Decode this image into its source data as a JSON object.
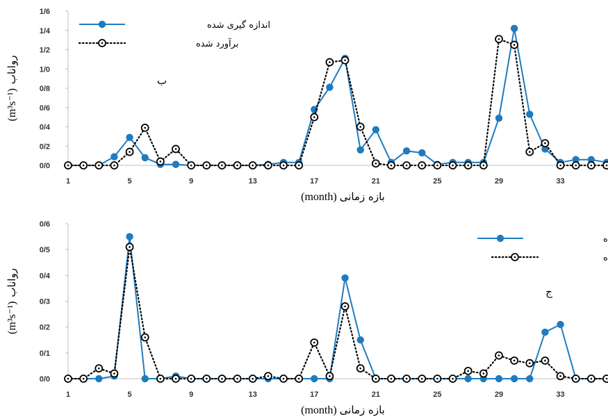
{
  "colors": {
    "measured": "#1f7bbf",
    "estimated": "#000000",
    "axis": "#bfbfbf"
  },
  "chart_data": [
    {
      "type": "line",
      "panel_label": "ب",
      "xlabel_fa": "بازه زمانی",
      "xlabel_unit": "(month)",
      "ylabel_fa": "رواناب",
      "ylabel_unit": "(m³s⁻¹)",
      "ylim": [
        0,
        1.6
      ],
      "ytick_labels": [
        "0/0",
        "0/2",
        "0/4",
        "0/6",
        "0/8",
        "1/0",
        "1/2",
        "1/4",
        "1/6"
      ],
      "xtick_labels": [
        "1",
        "5",
        "9",
        "13",
        "17",
        "21",
        "25",
        "29",
        "33"
      ],
      "legend_position": "top-left",
      "x": [
        1,
        2,
        3,
        4,
        5,
        6,
        7,
        8,
        9,
        10,
        11,
        12,
        13,
        14,
        15,
        16,
        17,
        18,
        19,
        20,
        21,
        22,
        23,
        24,
        25,
        26,
        27,
        28,
        29,
        30,
        31,
        32,
        33,
        34,
        35,
        36
      ],
      "series": [
        {
          "name": "اندازه گیری شده",
          "style": "solid-filled-circle",
          "values": [
            0,
            0,
            0,
            0.09,
            0.29,
            0.08,
            0.01,
            0.01,
            0,
            0,
            0,
            0,
            0,
            0.01,
            0.03,
            0.03,
            0.58,
            0.81,
            1.11,
            0.16,
            0.37,
            0.03,
            0.15,
            0.13,
            0.01,
            0.03,
            0.03,
            0.03,
            0.49,
            1.42,
            0.53,
            0.17,
            0.03,
            0.06,
            0.06,
            0.03
          ]
        },
        {
          "name": "برآورد شده",
          "style": "dotted-open-circle",
          "values": [
            0,
            0,
            0,
            0,
            0.14,
            0.39,
            0.04,
            0.17,
            0,
            0,
            0,
            0,
            0,
            0,
            0,
            0,
            0.5,
            1.07,
            1.09,
            0.4,
            0.02,
            0,
            0,
            0,
            0,
            0,
            0,
            0,
            1.31,
            1.25,
            0.14,
            0.23,
            0,
            0,
            0,
            0
          ]
        }
      ]
    },
    {
      "type": "line",
      "panel_label": "ج",
      "xlabel_fa": "بازه زمانی",
      "xlabel_unit": "(month)",
      "ylabel_fa": "رواناب",
      "ylabel_unit": "(m³s⁻¹)",
      "ylim": [
        0,
        0.6
      ],
      "ytick_labels": [
        "0/0",
        "0/1",
        "0/2",
        "0/3",
        "0/4",
        "0/5",
        "0/6"
      ],
      "xtick_labels": [
        "1",
        "5",
        "9",
        "13",
        "17",
        "21",
        "25",
        "29",
        "33"
      ],
      "legend_position": "top-right",
      "x": [
        1,
        2,
        3,
        4,
        5,
        6,
        7,
        8,
        9,
        10,
        11,
        12,
        13,
        14,
        15,
        16,
        17,
        18,
        19,
        20,
        21,
        22,
        23,
        24,
        25,
        26,
        27,
        28,
        29,
        30,
        31,
        32,
        33,
        34,
        35,
        36
      ],
      "series": [
        {
          "name": "اندازه گیری شده",
          "style": "solid-filled-circle",
          "values": [
            0,
            0,
            0,
            0.01,
            0.55,
            0,
            0,
            0.01,
            0,
            0,
            0,
            0,
            0,
            0,
            0,
            0,
            0,
            0,
            0.39,
            0.15,
            0,
            0,
            0,
            0,
            0,
            0,
            0,
            0,
            0,
            0,
            0,
            0.18,
            0.21,
            0,
            0,
            0
          ]
        },
        {
          "name": "برآورد شده",
          "style": "dotted-open-circle",
          "values": [
            0,
            0,
            0.04,
            0.02,
            0.51,
            0.16,
            0,
            0,
            0,
            0,
            0,
            0,
            0,
            0.01,
            0,
            0,
            0.14,
            0.01,
            0.28,
            0.04,
            0,
            0,
            0,
            0,
            0,
            0,
            0.03,
            0.02,
            0.09,
            0.07,
            0.06,
            0.07,
            0.01,
            0,
            0,
            0
          ]
        }
      ]
    }
  ]
}
